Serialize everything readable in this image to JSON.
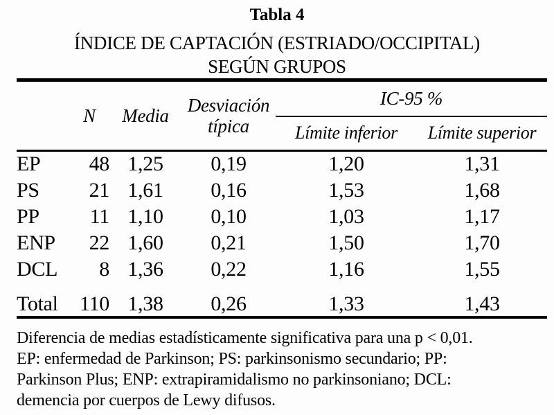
{
  "title": {
    "table_number": "Tabla 4",
    "line1": "ÍNDICE DE CAPTACIÓN (ESTRIADO/OCCIPITAL)",
    "line2": "SEGÚN GRUPOS"
  },
  "table": {
    "headers": {
      "n": "N",
      "media": "Media",
      "desviacion_line1": "Desviación",
      "desviacion_line2": "típica",
      "ic95": "IC-95 %",
      "limite_inferior": "Límite inferior",
      "limite_superior": "Límite superior"
    },
    "rows": [
      {
        "label": "EP",
        "n": "48",
        "media": "1,25",
        "desviacion": "0,19",
        "limite_inferior": "1,20",
        "limite_superior": "1,31"
      },
      {
        "label": "PS",
        "n": "21",
        "media": "1,61",
        "desviacion": "0,16",
        "limite_inferior": "1,53",
        "limite_superior": "1,68"
      },
      {
        "label": "PP",
        "n": "11",
        "media": "1,10",
        "desviacion": "0,10",
        "limite_inferior": "1,03",
        "limite_superior": "1,17"
      },
      {
        "label": "ENP",
        "n": "22",
        "media": "1,60",
        "desviacion": "0,21",
        "limite_inferior": "1,50",
        "limite_superior": "1,70"
      },
      {
        "label": "DCL",
        "n": "8",
        "media": "1,36",
        "desviacion": "0,22",
        "limite_inferior": "1,16",
        "limite_superior": "1,55"
      }
    ],
    "total_row": {
      "label": "Total",
      "n": "110",
      "media": "1,38",
      "desviacion": "0,26",
      "limite_inferior": "1,33",
      "limite_superior": "1,43"
    }
  },
  "footnote": {
    "line1": "Diferencia de medias estadísticamente significativa para una p < 0,01.",
    "line2": "EP: enfermedad de Parkinson; PS: parkinsonismo secundario; PP:",
    "line3": "Parkinson Plus; ENP: extrapiramidalismo no parkinsoniano; DCL:",
    "line4": "demencia por cuerpos de Lewy difusos."
  }
}
